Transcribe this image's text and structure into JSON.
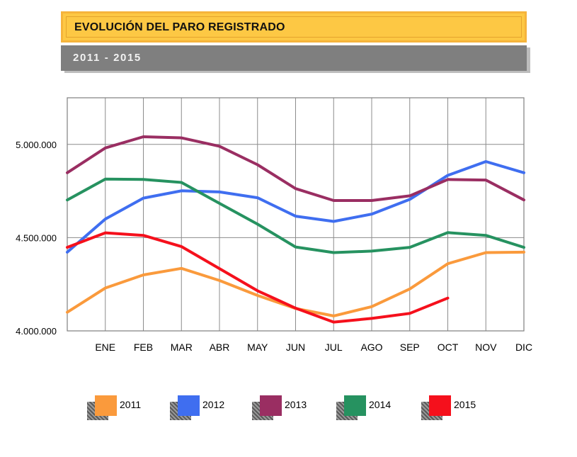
{
  "header": {
    "title": "EVOLUCIÓN DEL PARO REGISTRADO",
    "subtitle": "2011 - 2015"
  },
  "chart_data": {
    "type": "line",
    "title": "EVOLUCIÓN DEL PARO REGISTRADO",
    "subtitle": "2011 - 2015",
    "xlabel": "",
    "ylabel": "",
    "x": [
      "",
      "ENE",
      "FEB",
      "MAR",
      "ABR",
      "MAY",
      "JUN",
      "JUL",
      "AGO",
      "SEP",
      "OCT",
      "NOV",
      "DIC"
    ],
    "ylim": [
      4000000,
      5250000
    ],
    "yticks": [
      4000000,
      4500000,
      5000000
    ],
    "ytick_labels": [
      "4.000.000",
      "4.500.000",
      "5.000.000"
    ],
    "grid": true,
    "legend_position": "bottom",
    "series": [
      {
        "name": "2011",
        "color": "#fa9a3c",
        "values": [
          4100000,
          4230000,
          4300000,
          4335000,
          4270000,
          4190000,
          4120000,
          4080000,
          4130000,
          4225000,
          4360000,
          4420000,
          4422000
        ]
      },
      {
        "name": "2012",
        "color": "#3f6ef0",
        "values": [
          4422000,
          4600000,
          4712000,
          4751000,
          4745000,
          4714000,
          4615000,
          4587000,
          4626000,
          4705000,
          4834000,
          4908000,
          4848000
        ]
      },
      {
        "name": "2013",
        "color": "#9a2e62",
        "values": [
          4848000,
          4981000,
          5041000,
          5035000,
          4990000,
          4891000,
          4763000,
          4699000,
          4699000,
          4724000,
          4812000,
          4809000,
          4702000
        ]
      },
      {
        "name": "2014",
        "color": "#269260",
        "values": [
          4702000,
          4814000,
          4812000,
          4796000,
          4684000,
          4572000,
          4450000,
          4420000,
          4428000,
          4448000,
          4527000,
          4512000,
          4448000
        ]
      },
      {
        "name": "2015",
        "color": "#f5101c",
        "values": [
          4448000,
          4526000,
          4512000,
          4452000,
          4334000,
          4215000,
          4122000,
          4047000,
          4067000,
          4094000,
          4176000,
          null,
          null
        ]
      }
    ]
  }
}
